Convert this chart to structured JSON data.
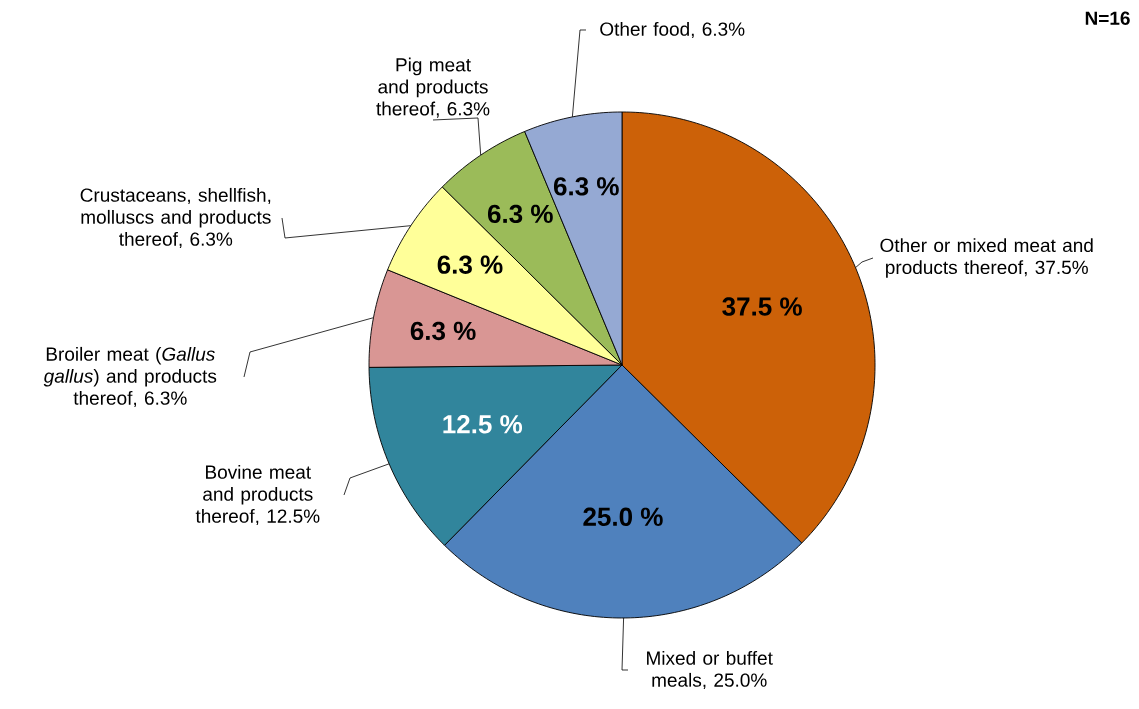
{
  "chart_data": {
    "type": "pie",
    "categories": [
      "Other or mixed meat and products thereof, 37.5%",
      "Mixed or buffet meals, 25.0%",
      "Bovine meat and products thereof, 12.5%",
      "Broiler meat (*Gallus gallus*) and products thereof, 6.3%",
      "Crustaceans, shellfish, molluscs and products thereof, 6.3%",
      "Pig meat and products thereof, 6.3%",
      "Other food, 6.3%"
    ],
    "values": [
      37.5,
      25.0,
      12.5,
      6.3,
      6.3,
      6.3,
      6.3
    ],
    "value_labels": [
      "37.5 %",
      "25.0 %",
      "12.5 %",
      "6.3 %",
      "6.3 %",
      "6.3 %",
      "6.3 %"
    ],
    "colors": [
      "#cc6108",
      "#4f81bd",
      "#31859c",
      "#d99694",
      "#ffff99",
      "#9bbb59",
      "#95a9d3"
    ],
    "annotations": [
      "N=16"
    ]
  }
}
